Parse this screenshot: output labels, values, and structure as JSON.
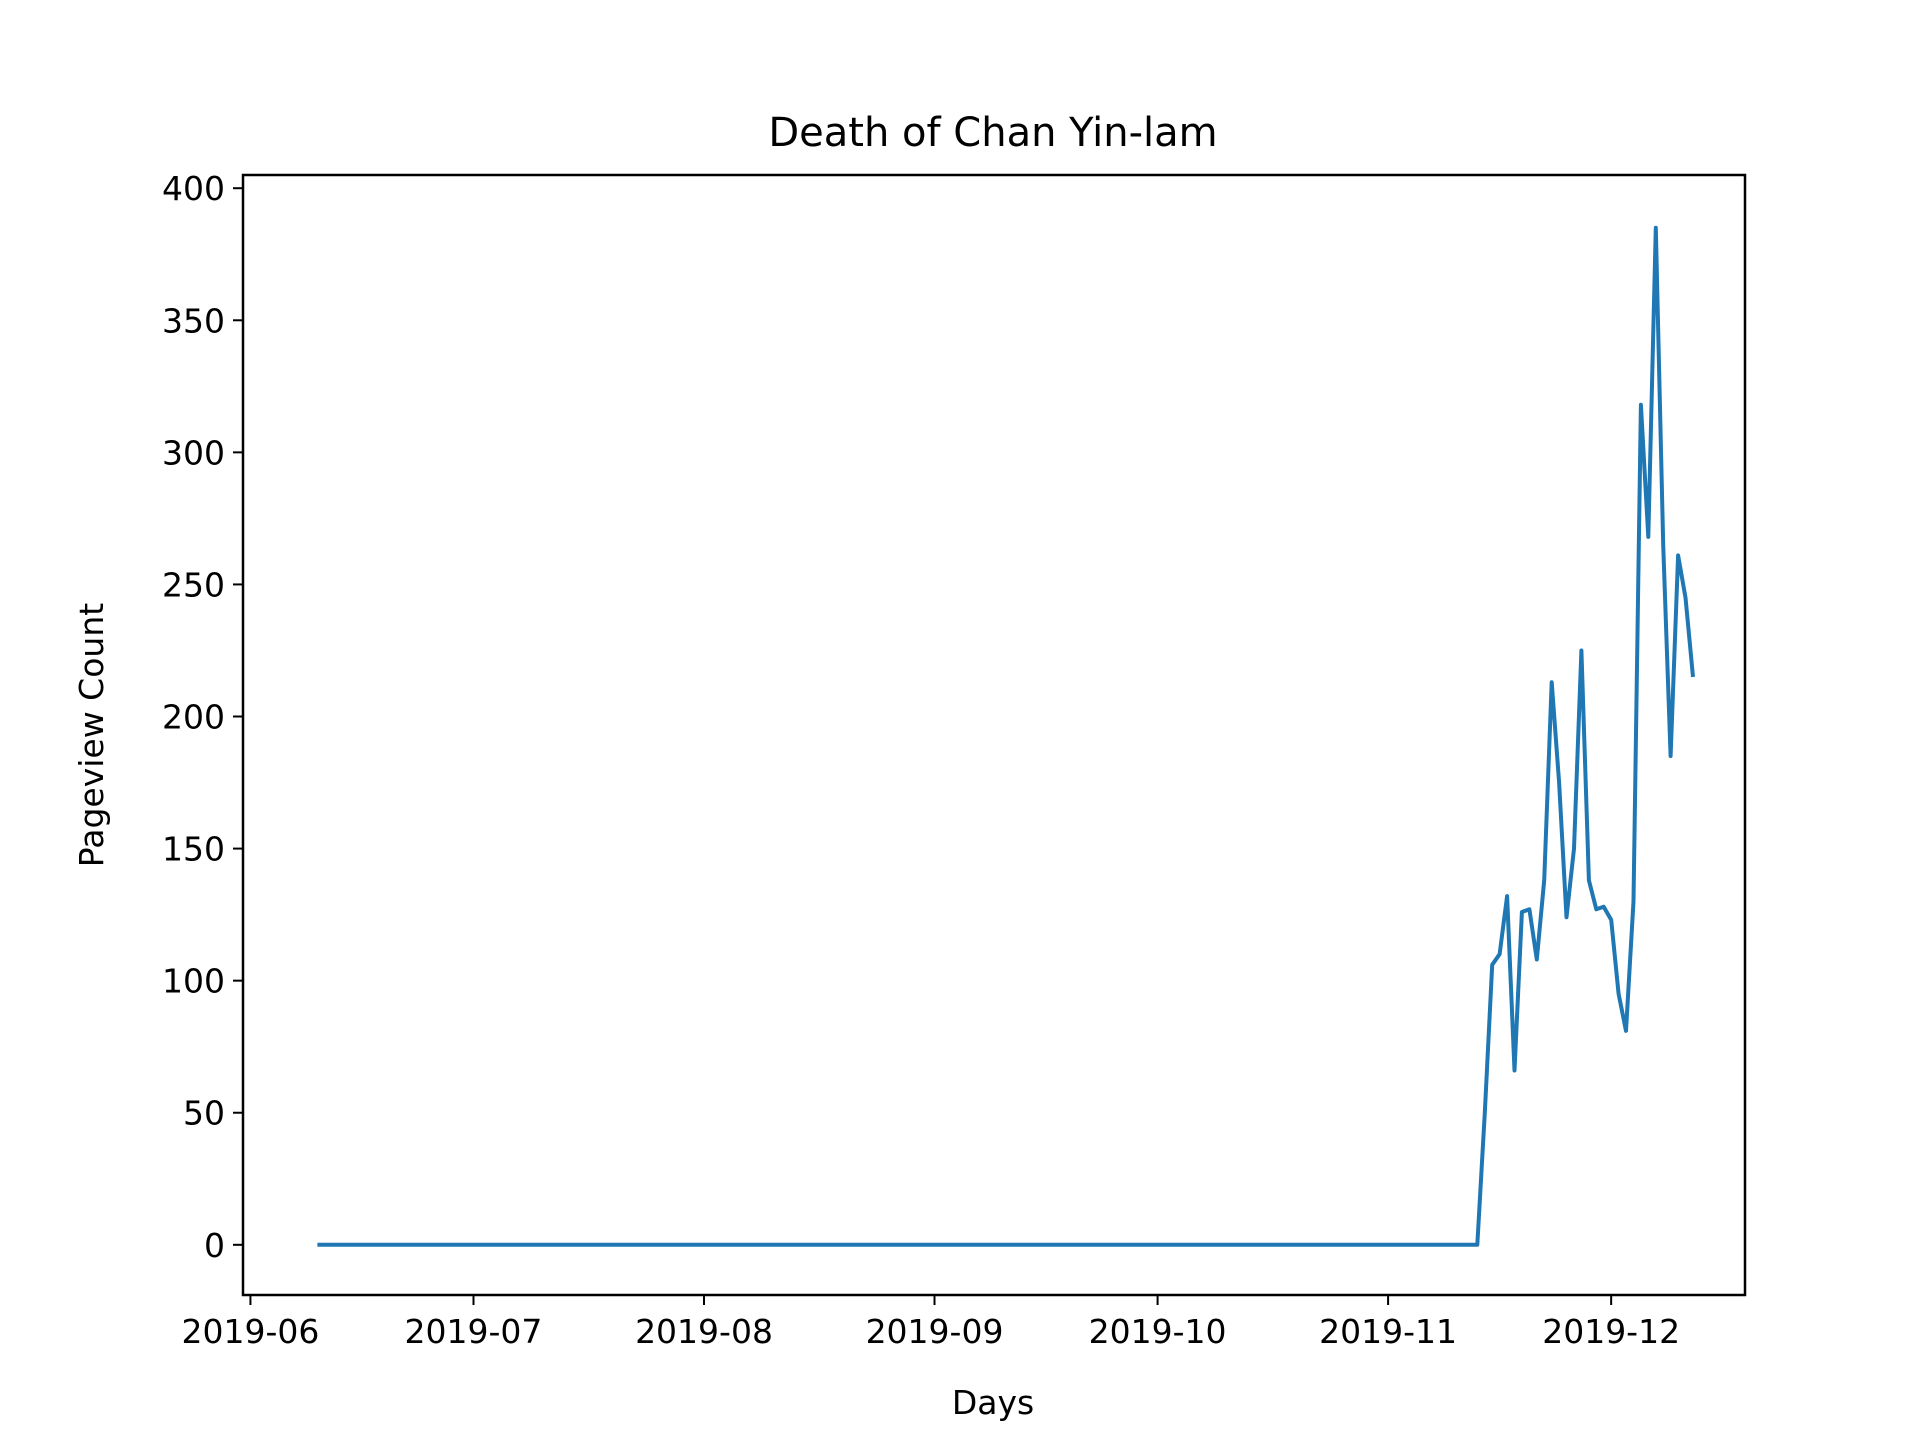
{
  "chart_data": {
    "type": "line",
    "title": "Death of Chan Yin-lam",
    "xlabel": "Days",
    "ylabel": "Pageview Count",
    "x_tick_labels": [
      "2019-06",
      "2019-07",
      "2019-08",
      "2019-09",
      "2019-10",
      "2019-11",
      "2019-12"
    ],
    "x_ticks": [
      "2019-06-01",
      "2019-07-01",
      "2019-08-01",
      "2019-09-01",
      "2019-10-01",
      "2019-11-01",
      "2019-12-01"
    ],
    "y_ticks": [
      0,
      50,
      100,
      150,
      200,
      250,
      300,
      350,
      400
    ],
    "xlim": [
      "2019-05-31",
      "2019-12-19"
    ],
    "ylim": [
      -19,
      405
    ],
    "grid": false,
    "series": [
      {
        "color": "#1f77b4",
        "points": [
          [
            "2019-06-10",
            0
          ],
          [
            "2019-11-13",
            0
          ],
          [
            "2019-11-14",
            50
          ],
          [
            "2019-11-15",
            106
          ],
          [
            "2019-11-16",
            110
          ],
          [
            "2019-11-17",
            132
          ],
          [
            "2019-11-18",
            66
          ],
          [
            "2019-11-19",
            126
          ],
          [
            "2019-11-20",
            127
          ],
          [
            "2019-11-21",
            108
          ],
          [
            "2019-11-22",
            138
          ],
          [
            "2019-11-23",
            213
          ],
          [
            "2019-11-24",
            175
          ],
          [
            "2019-11-25",
            124
          ],
          [
            "2019-11-26",
            150
          ],
          [
            "2019-11-27",
            225
          ],
          [
            "2019-11-28",
            138
          ],
          [
            "2019-11-29",
            127
          ],
          [
            "2019-11-30",
            128
          ],
          [
            "2019-12-01",
            123
          ],
          [
            "2019-12-02",
            95
          ],
          [
            "2019-12-03",
            81
          ],
          [
            "2019-12-04",
            130
          ],
          [
            "2019-12-05",
            318
          ],
          [
            "2019-12-06",
            268
          ],
          [
            "2019-12-07",
            385
          ],
          [
            "2019-12-08",
            265
          ],
          [
            "2019-12-09",
            185
          ],
          [
            "2019-12-10",
            261
          ],
          [
            "2019-12-11",
            245
          ],
          [
            "2019-12-12",
            215
          ]
        ]
      }
    ]
  }
}
